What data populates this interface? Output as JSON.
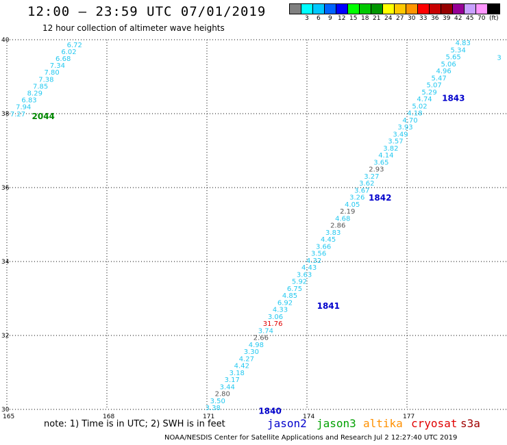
{
  "header": {
    "title": "12:00 – 23:59 UTC 07/01/2019",
    "subtitle": "12 hour collection of altimeter wave heights"
  },
  "legend": {
    "unit_label": "(ft)",
    "items": [
      {
        "label": "",
        "color": "#808080"
      },
      {
        "label": "3",
        "color": "#00ffff"
      },
      {
        "label": "6",
        "color": "#00c8ff"
      },
      {
        "label": "9",
        "color": "#0064ff"
      },
      {
        "label": "12",
        "color": "#0000ff"
      },
      {
        "label": "15",
        "color": "#00ff00"
      },
      {
        "label": "18",
        "color": "#00c800"
      },
      {
        "label": "21",
        "color": "#009600"
      },
      {
        "label": "24",
        "color": "#ffff00"
      },
      {
        "label": "27",
        "color": "#ffc800"
      },
      {
        "label": "30",
        "color": "#ff9600"
      },
      {
        "label": "33",
        "color": "#ff0000"
      },
      {
        "label": "36",
        "color": "#c80000"
      },
      {
        "label": "39",
        "color": "#960000"
      },
      {
        "label": "42",
        "color": "#960096"
      },
      {
        "label": "45",
        "color": "#c8a0ff"
      },
      {
        "label": "70",
        "color": "#ff96ff"
      },
      {
        "label": "",
        "color": "#000000"
      }
    ]
  },
  "map": {
    "lon_ticks": [
      "165",
      "168",
      "171",
      "174",
      "177"
    ],
    "lat_ticks": [
      "40",
      "38",
      "36",
      "34",
      "32",
      "30"
    ],
    "lon_range": [
      165,
      180
    ],
    "lat_range": [
      30,
      40
    ],
    "colors": {
      "cyan": "#22c8f0",
      "gray": "#555555",
      "red": "#e00000",
      "blue": "#0000cc",
      "green": "#008800"
    },
    "pass_labels": [
      {
        "text": "2044",
        "lon": 165.75,
        "lat": 37.93,
        "color": "green"
      },
      {
        "text": "1843",
        "lon": 178.05,
        "lat": 38.42,
        "color": "blue"
      },
      {
        "text": "1842",
        "lon": 175.85,
        "lat": 35.72,
        "color": "blue"
      },
      {
        "text": "1841",
        "lon": 174.3,
        "lat": 32.8,
        "color": "blue"
      },
      {
        "text": "1840",
        "lon": 172.55,
        "lat": 29.95,
        "color": "blue"
      }
    ],
    "track_a": {
      "start": [
        165.1,
        37.93
      ],
      "end": [
        166.8,
        39.8
      ],
      "values": [
        "7.27",
        "7.94",
        "6.83",
        "8.29",
        "7.85",
        "7.38",
        "7.80",
        "7.34",
        "6.68",
        "6.02",
        "6.72"
      ],
      "colors": [
        "c",
        "c",
        "c",
        "c",
        "c",
        "c",
        "c",
        "c",
        "c",
        "c",
        "c"
      ]
    },
    "track_b": {
      "start": [
        170.95,
        29.98
      ],
      "end": [
        178.45,
        39.85
      ],
      "values": [
        "3.38",
        "3.50",
        "2.80",
        "3.44",
        "3.17",
        "3.18",
        "4.42",
        "4.27",
        "3.30",
        "4.98",
        "2.66",
        "3.74",
        "31.76",
        "3.06",
        "4.33",
        "6.92",
        "4.85",
        "6.75",
        "5.92",
        "3.63",
        "4.43",
        "4.32",
        "3.56",
        "3.66",
        "4.45",
        "3.83",
        "2.86",
        "4.68",
        "2.19",
        "4.05",
        "3.26",
        "3.67",
        "3.62",
        "3.27",
        "2.93",
        "3.65",
        "4.14",
        "3.82",
        "3.57",
        "3.49",
        "3.93",
        "4.70",
        "4.18",
        "5.02",
        "4.74",
        "5.29",
        "5.07",
        "5.47",
        "4.96",
        "5.06",
        "5.65",
        "5.34",
        "4.83"
      ],
      "colors": [
        "c",
        "c",
        "g",
        "c",
        "c",
        "c",
        "c",
        "c",
        "c",
        "c",
        "g",
        "c",
        "r",
        "c",
        "c",
        "c",
        "c",
        "c",
        "c",
        "c",
        "c",
        "c",
        "c",
        "c",
        "c",
        "c",
        "g",
        "c",
        "g",
        "c",
        "c",
        "c",
        "c",
        "c",
        "g",
        "c",
        "c",
        "c",
        "c",
        "c",
        "c",
        "c",
        "c",
        "c",
        "c",
        "c",
        "c",
        "c",
        "c",
        "c",
        "c",
        "c",
        "c"
      ]
    },
    "edge_values": [
      {
        "text": "3",
        "lon": 179.7,
        "lat": 39.45,
        "color": "c"
      }
    ]
  },
  "note": "note:  1) Time is in UTC;  2) SWH is in feet",
  "satellites": [
    {
      "name": "jason2",
      "color": "#0000cc"
    },
    {
      "name": "jason3",
      "color": "#00a000"
    },
    {
      "name": "altika",
      "color": "#ff9000"
    },
    {
      "name": "cryosat",
      "color": "#e00000"
    },
    {
      "name": "s3a",
      "color": "#a00000"
    }
  ],
  "footer": "NOAA/NESDIS Center for Satellite Applications and Research     Jul  2 12:27:40 UTC 2019"
}
